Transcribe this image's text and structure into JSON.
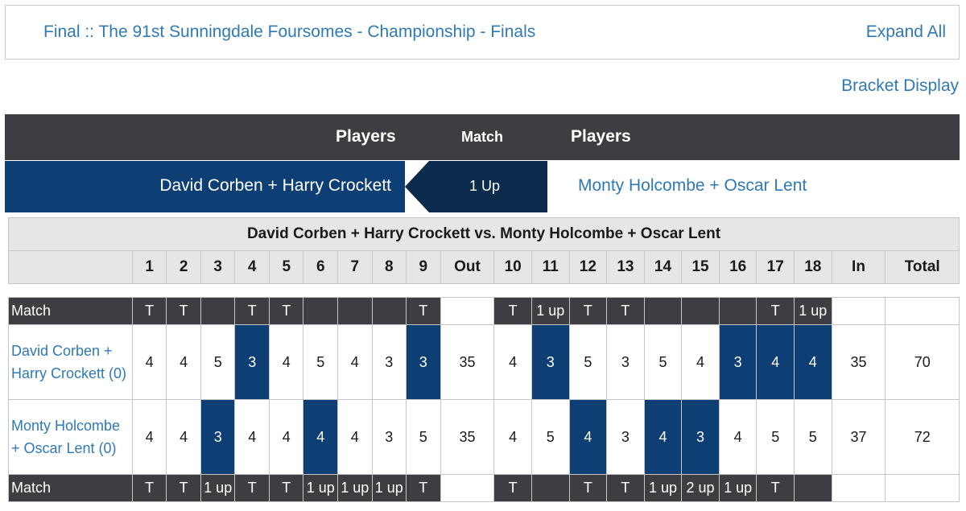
{
  "header": {
    "title": "Final :: The 91st Sunningdale Foursomes - Championship - Finals",
    "expand_label": "Expand All",
    "bracket_label": "Bracket Display"
  },
  "match_header": {
    "players_left": "Players",
    "match": "Match",
    "players_right": "Players"
  },
  "match": {
    "left_team": "David Corben + Harry Crockett",
    "status": "1 Up",
    "right_team": "Monty Holcombe + Oscar Lent"
  },
  "scorecard": {
    "title": "David Corben + Harry Crockett vs. Monty Holcombe + Oscar Lent",
    "columns": [
      "",
      "1",
      "2",
      "3",
      "4",
      "5",
      "6",
      "7",
      "8",
      "9",
      "Out",
      "10",
      "11",
      "12",
      "13",
      "14",
      "15",
      "16",
      "17",
      "18",
      "In",
      "Total"
    ],
    "top_match": {
      "label": "Match",
      "values": [
        "T",
        "T",
        "",
        "T",
        "T",
        "",
        "",
        "",
        "T",
        "",
        "T",
        "1 up",
        "T",
        "T",
        "",
        "",
        "",
        "T",
        "1 up",
        "",
        ""
      ]
    },
    "team1": {
      "name": "David Corben + Harry Crockett (0)",
      "scores": [
        "4",
        "4",
        "5",
        "3",
        "4",
        "5",
        "4",
        "3",
        "3",
        "35",
        "4",
        "3",
        "5",
        "3",
        "5",
        "4",
        "3",
        "4",
        "4",
        "35",
        "70"
      ],
      "winning_holes": [
        3,
        8,
        11,
        16,
        17,
        18
      ]
    },
    "team2": {
      "name": "Monty Holcombe + Oscar Lent (0)",
      "scores": [
        "4",
        "4",
        "3",
        "4",
        "4",
        "4",
        "4",
        "3",
        "5",
        "35",
        "4",
        "5",
        "4",
        "3",
        "4",
        "3",
        "4",
        "5",
        "5",
        "37",
        "72"
      ],
      "winning_holes": [
        2,
        5,
        12,
        14,
        15
      ]
    },
    "bottom_match": {
      "label": "Match",
      "values": [
        "T",
        "T",
        "1 up",
        "T",
        "T",
        "1 up",
        "1 up",
        "1 up",
        "T",
        "",
        "T",
        "",
        "T",
        "T",
        "1 up",
        "2 up",
        "1 up",
        "T",
        "",
        "",
        ""
      ]
    }
  },
  "colors": {
    "link": "#2f79b4",
    "dark_header": "#3e3e42",
    "navy": "#0e3f74",
    "navy_dark": "#0b2b4c"
  }
}
